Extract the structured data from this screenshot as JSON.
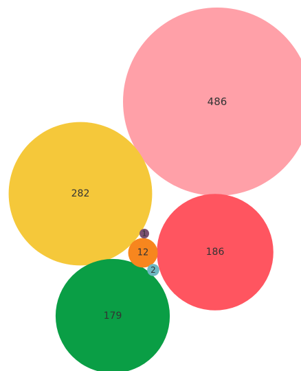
{
  "chart_data": {
    "type": "bubble",
    "bubbles": [
      {
        "value": 486,
        "label": "486",
        "color": "#FFA0A8"
      },
      {
        "value": 282,
        "label": "282",
        "color": "#F5C83A"
      },
      {
        "value": 186,
        "label": "186",
        "color": "#FF5560"
      },
      {
        "value": 179,
        "label": "179",
        "color": "#0A9E45"
      },
      {
        "value": 12,
        "label": "12",
        "color": "#F7861E"
      },
      {
        "value": 2,
        "label": "2",
        "color": "#6DB8C2"
      },
      {
        "value": 1,
        "label": "1",
        "color": "#7A5070"
      }
    ]
  }
}
